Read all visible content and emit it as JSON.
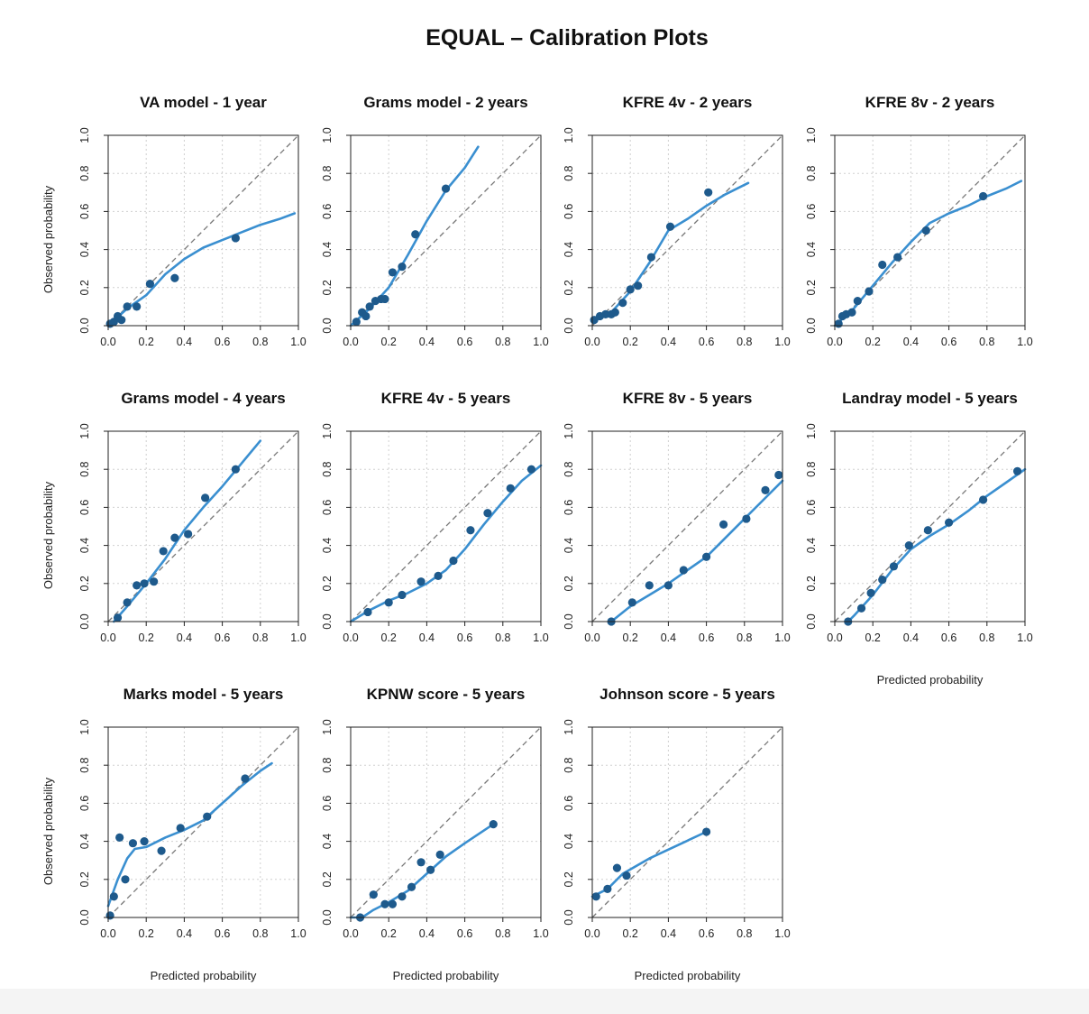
{
  "page": {
    "title": "EQUAL – Calibration Plots"
  },
  "colors": {
    "line": "#3a8fd0",
    "point": "#1e5a8c",
    "reference": "#777777",
    "grid": "#d0d0d0"
  },
  "chart_data": [
    {
      "type": "scatter",
      "title": "VA model - 1 year",
      "xlabel": "",
      "ylabel": "Observed probability",
      "xlim": [
        0,
        1
      ],
      "ylim": [
        0,
        1
      ],
      "xticks": [
        "0.0",
        "0.2",
        "0.4",
        "0.6",
        "0.8",
        "1.0"
      ],
      "yticks": [
        "0.0",
        "0.2",
        "0.4",
        "0.6",
        "0.8",
        "1.0"
      ],
      "grid": true,
      "reference_line": "y = x",
      "points": [
        [
          0.01,
          0.01
        ],
        [
          0.03,
          0.02
        ],
        [
          0.05,
          0.05
        ],
        [
          0.07,
          0.03
        ],
        [
          0.1,
          0.1
        ],
        [
          0.15,
          0.1
        ],
        [
          0.22,
          0.22
        ],
        [
          0.35,
          0.25
        ],
        [
          0.67,
          0.46
        ]
      ],
      "curve": [
        [
          0.0,
          0.0
        ],
        [
          0.1,
          0.09
        ],
        [
          0.2,
          0.16
        ],
        [
          0.3,
          0.27
        ],
        [
          0.4,
          0.35
        ],
        [
          0.5,
          0.41
        ],
        [
          0.6,
          0.45
        ],
        [
          0.7,
          0.49
        ],
        [
          0.8,
          0.53
        ],
        [
          0.9,
          0.56
        ],
        [
          0.98,
          0.59
        ]
      ]
    },
    {
      "type": "scatter",
      "title": "Grams model - 2 years",
      "xlabel": "",
      "ylabel": "",
      "xlim": [
        0,
        1
      ],
      "ylim": [
        0,
        1
      ],
      "xticks": [
        "0.0",
        "0.2",
        "0.4",
        "0.6",
        "0.8",
        "1.0"
      ],
      "yticks": [
        "0.0",
        "0.2",
        "0.4",
        "0.6",
        "0.8",
        "1.0"
      ],
      "grid": true,
      "reference_line": "y = x",
      "points": [
        [
          0.03,
          0.02
        ],
        [
          0.06,
          0.07
        ],
        [
          0.08,
          0.05
        ],
        [
          0.1,
          0.1
        ],
        [
          0.13,
          0.13
        ],
        [
          0.16,
          0.14
        ],
        [
          0.18,
          0.14
        ],
        [
          0.22,
          0.28
        ],
        [
          0.27,
          0.31
        ],
        [
          0.34,
          0.48
        ],
        [
          0.5,
          0.72
        ]
      ],
      "curve": [
        [
          0.0,
          0.0
        ],
        [
          0.1,
          0.09
        ],
        [
          0.2,
          0.2
        ],
        [
          0.3,
          0.37
        ],
        [
          0.4,
          0.55
        ],
        [
          0.5,
          0.71
        ],
        [
          0.6,
          0.83
        ],
        [
          0.67,
          0.94
        ]
      ]
    },
    {
      "type": "scatter",
      "title": "KFRE 4v - 2 years",
      "xlabel": "",
      "ylabel": "",
      "xlim": [
        0,
        1
      ],
      "ylim": [
        0,
        1
      ],
      "xticks": [
        "0.0",
        "0.2",
        "0.4",
        "0.6",
        "0.8",
        "1.0"
      ],
      "yticks": [
        "0.0",
        "0.2",
        "0.4",
        "0.6",
        "0.8",
        "1.0"
      ],
      "grid": true,
      "reference_line": "y = x",
      "points": [
        [
          0.01,
          0.03
        ],
        [
          0.04,
          0.05
        ],
        [
          0.07,
          0.06
        ],
        [
          0.1,
          0.06
        ],
        [
          0.12,
          0.07
        ],
        [
          0.16,
          0.12
        ],
        [
          0.2,
          0.19
        ],
        [
          0.24,
          0.21
        ],
        [
          0.31,
          0.36
        ],
        [
          0.41,
          0.52
        ],
        [
          0.61,
          0.7
        ]
      ],
      "curve": [
        [
          0.0,
          0.03
        ],
        [
          0.1,
          0.07
        ],
        [
          0.2,
          0.18
        ],
        [
          0.3,
          0.33
        ],
        [
          0.4,
          0.5
        ],
        [
          0.5,
          0.56
        ],
        [
          0.6,
          0.63
        ],
        [
          0.7,
          0.69
        ],
        [
          0.82,
          0.75
        ]
      ]
    },
    {
      "type": "scatter",
      "title": "KFRE 8v - 2 years",
      "xlabel": "",
      "ylabel": "",
      "xlim": [
        0,
        1
      ],
      "ylim": [
        0,
        1
      ],
      "xticks": [
        "0.0",
        "0.2",
        "0.4",
        "0.6",
        "0.8",
        "1.0"
      ],
      "yticks": [
        "0.0",
        "0.2",
        "0.4",
        "0.6",
        "0.8",
        "1.0"
      ],
      "grid": true,
      "reference_line": "y = x",
      "points": [
        [
          0.02,
          0.01
        ],
        [
          0.04,
          0.05
        ],
        [
          0.06,
          0.06
        ],
        [
          0.09,
          0.07
        ],
        [
          0.12,
          0.13
        ],
        [
          0.18,
          0.18
        ],
        [
          0.25,
          0.32
        ],
        [
          0.33,
          0.36
        ],
        [
          0.48,
          0.5
        ],
        [
          0.78,
          0.68
        ]
      ],
      "curve": [
        [
          0.0,
          0.0
        ],
        [
          0.1,
          0.09
        ],
        [
          0.2,
          0.21
        ],
        [
          0.3,
          0.33
        ],
        [
          0.4,
          0.44
        ],
        [
          0.5,
          0.54
        ],
        [
          0.6,
          0.59
        ],
        [
          0.7,
          0.63
        ],
        [
          0.8,
          0.68
        ],
        [
          0.9,
          0.72
        ],
        [
          0.98,
          0.76
        ]
      ]
    },
    {
      "type": "scatter",
      "title": "Grams model - 4 years",
      "xlabel": "",
      "ylabel": "Observed probability",
      "xlim": [
        0,
        1
      ],
      "ylim": [
        0,
        1
      ],
      "xticks": [
        "0.0",
        "0.2",
        "0.4",
        "0.6",
        "0.8",
        "1.0"
      ],
      "yticks": [
        "0.0",
        "0.2",
        "0.4",
        "0.6",
        "0.8",
        "1.0"
      ],
      "grid": true,
      "reference_line": "y = x",
      "points": [
        [
          0.05,
          0.02
        ],
        [
          0.1,
          0.1
        ],
        [
          0.15,
          0.19
        ],
        [
          0.19,
          0.2
        ],
        [
          0.24,
          0.21
        ],
        [
          0.29,
          0.37
        ],
        [
          0.35,
          0.44
        ],
        [
          0.42,
          0.46
        ],
        [
          0.51,
          0.65
        ],
        [
          0.67,
          0.8
        ]
      ],
      "curve": [
        [
          0.03,
          0.0
        ],
        [
          0.1,
          0.08
        ],
        [
          0.2,
          0.2
        ],
        [
          0.3,
          0.33
        ],
        [
          0.4,
          0.48
        ],
        [
          0.5,
          0.6
        ],
        [
          0.6,
          0.71
        ],
        [
          0.7,
          0.83
        ],
        [
          0.8,
          0.95
        ]
      ]
    },
    {
      "type": "scatter",
      "title": "KFRE 4v - 5 years",
      "xlabel": "",
      "ylabel": "",
      "xlim": [
        0,
        1
      ],
      "ylim": [
        0,
        1
      ],
      "xticks": [
        "0.0",
        "0.2",
        "0.4",
        "0.6",
        "0.8",
        "1.0"
      ],
      "yticks": [
        "0.0",
        "0.2",
        "0.4",
        "0.6",
        "0.8",
        "1.0"
      ],
      "grid": true,
      "reference_line": "y = x",
      "points": [
        [
          0.09,
          0.05
        ],
        [
          0.2,
          0.1
        ],
        [
          0.27,
          0.14
        ],
        [
          0.37,
          0.21
        ],
        [
          0.46,
          0.24
        ],
        [
          0.54,
          0.32
        ],
        [
          0.63,
          0.48
        ],
        [
          0.72,
          0.57
        ],
        [
          0.84,
          0.7
        ],
        [
          0.95,
          0.8
        ]
      ],
      "curve": [
        [
          0.0,
          0.0
        ],
        [
          0.1,
          0.06
        ],
        [
          0.2,
          0.11
        ],
        [
          0.3,
          0.15
        ],
        [
          0.4,
          0.2
        ],
        [
          0.5,
          0.27
        ],
        [
          0.6,
          0.38
        ],
        [
          0.7,
          0.51
        ],
        [
          0.8,
          0.63
        ],
        [
          0.9,
          0.74
        ],
        [
          1.0,
          0.82
        ]
      ]
    },
    {
      "type": "scatter",
      "title": "KFRE 8v - 5 years",
      "xlabel": "",
      "ylabel": "",
      "xlim": [
        0,
        1
      ],
      "ylim": [
        0,
        1
      ],
      "xticks": [
        "0.0",
        "0.2",
        "0.4",
        "0.6",
        "0.8",
        "1.0"
      ],
      "yticks": [
        "0.0",
        "0.2",
        "0.4",
        "0.6",
        "0.8",
        "1.0"
      ],
      "grid": true,
      "reference_line": "y = x",
      "points": [
        [
          0.1,
          0.0
        ],
        [
          0.21,
          0.1
        ],
        [
          0.3,
          0.19
        ],
        [
          0.4,
          0.19
        ],
        [
          0.48,
          0.27
        ],
        [
          0.6,
          0.34
        ],
        [
          0.69,
          0.51
        ],
        [
          0.81,
          0.54
        ],
        [
          0.91,
          0.69
        ],
        [
          0.98,
          0.77
        ]
      ],
      "curve": [
        [
          0.1,
          0.0
        ],
        [
          0.2,
          0.08
        ],
        [
          0.3,
          0.14
        ],
        [
          0.4,
          0.2
        ],
        [
          0.5,
          0.27
        ],
        [
          0.6,
          0.34
        ],
        [
          0.7,
          0.44
        ],
        [
          0.8,
          0.54
        ],
        [
          0.9,
          0.64
        ],
        [
          1.0,
          0.74
        ]
      ]
    },
    {
      "type": "scatter",
      "title": "Landray model - 5 years",
      "xlabel": "Predicted probability",
      "ylabel": "",
      "xlim": [
        0,
        1
      ],
      "ylim": [
        0,
        1
      ],
      "xticks": [
        "0.0",
        "0.2",
        "0.4",
        "0.6",
        "0.8",
        "1.0"
      ],
      "yticks": [
        "0.0",
        "0.2",
        "0.4",
        "0.6",
        "0.8",
        "1.0"
      ],
      "grid": true,
      "reference_line": "y = x",
      "points": [
        [
          0.07,
          0.0
        ],
        [
          0.14,
          0.07
        ],
        [
          0.19,
          0.15
        ],
        [
          0.25,
          0.22
        ],
        [
          0.31,
          0.29
        ],
        [
          0.39,
          0.4
        ],
        [
          0.49,
          0.48
        ],
        [
          0.6,
          0.52
        ],
        [
          0.78,
          0.64
        ],
        [
          0.96,
          0.79
        ]
      ],
      "curve": [
        [
          0.07,
          0.0
        ],
        [
          0.1,
          0.03
        ],
        [
          0.2,
          0.14
        ],
        [
          0.3,
          0.27
        ],
        [
          0.4,
          0.38
        ],
        [
          0.5,
          0.45
        ],
        [
          0.6,
          0.51
        ],
        [
          0.7,
          0.58
        ],
        [
          0.8,
          0.66
        ],
        [
          0.9,
          0.73
        ],
        [
          1.0,
          0.8
        ]
      ]
    },
    {
      "type": "scatter",
      "title": "Marks model - 5 years",
      "xlabel": "Predicted probability",
      "ylabel": "Observed probability",
      "xlim": [
        0,
        1
      ],
      "ylim": [
        0,
        1
      ],
      "xticks": [
        "0.0",
        "0.2",
        "0.4",
        "0.6",
        "0.8",
        "1.0"
      ],
      "yticks": [
        "0.0",
        "0.2",
        "0.4",
        "0.6",
        "0.8",
        "1.0"
      ],
      "grid": true,
      "reference_line": "y = x",
      "points": [
        [
          0.01,
          0.01
        ],
        [
          0.03,
          0.11
        ],
        [
          0.06,
          0.42
        ],
        [
          0.09,
          0.2
        ],
        [
          0.13,
          0.39
        ],
        [
          0.19,
          0.4
        ],
        [
          0.28,
          0.35
        ],
        [
          0.38,
          0.47
        ],
        [
          0.52,
          0.53
        ],
        [
          0.72,
          0.73
        ]
      ],
      "curve": [
        [
          0.0,
          0.06
        ],
        [
          0.05,
          0.2
        ],
        [
          0.1,
          0.31
        ],
        [
          0.14,
          0.36
        ],
        [
          0.2,
          0.37
        ],
        [
          0.3,
          0.42
        ],
        [
          0.4,
          0.46
        ],
        [
          0.5,
          0.51
        ],
        [
          0.6,
          0.6
        ],
        [
          0.7,
          0.69
        ],
        [
          0.8,
          0.77
        ],
        [
          0.86,
          0.81
        ]
      ]
    },
    {
      "type": "scatter",
      "title": "KPNW score - 5 years",
      "xlabel": "Predicted probability",
      "ylabel": "",
      "xlim": [
        0,
        1
      ],
      "ylim": [
        0,
        1
      ],
      "xticks": [
        "0.0",
        "0.2",
        "0.4",
        "0.6",
        "0.8",
        "1.0"
      ],
      "yticks": [
        "0.0",
        "0.2",
        "0.4",
        "0.6",
        "0.8",
        "1.0"
      ],
      "grid": true,
      "reference_line": "y = x",
      "points": [
        [
          0.05,
          0.0
        ],
        [
          0.12,
          0.12
        ],
        [
          0.18,
          0.07
        ],
        [
          0.22,
          0.07
        ],
        [
          0.27,
          0.11
        ],
        [
          0.32,
          0.16
        ],
        [
          0.37,
          0.29
        ],
        [
          0.42,
          0.25
        ],
        [
          0.47,
          0.33
        ],
        [
          0.75,
          0.49
        ]
      ],
      "curve": [
        [
          0.0,
          0.0
        ],
        [
          0.06,
          0.0
        ],
        [
          0.12,
          0.04
        ],
        [
          0.2,
          0.08
        ],
        [
          0.3,
          0.14
        ],
        [
          0.4,
          0.23
        ],
        [
          0.5,
          0.32
        ],
        [
          0.6,
          0.39
        ],
        [
          0.75,
          0.49
        ]
      ]
    },
    {
      "type": "scatter",
      "title": "Johnson score - 5 years",
      "xlabel": "Predicted probability",
      "ylabel": "",
      "xlim": [
        0,
        1
      ],
      "ylim": [
        0,
        1
      ],
      "xticks": [
        "0.0",
        "0.2",
        "0.4",
        "0.6",
        "0.8",
        "1.0"
      ],
      "yticks": [
        "0.0",
        "0.2",
        "0.4",
        "0.6",
        "0.8",
        "1.0"
      ],
      "grid": true,
      "reference_line": "y = x",
      "points": [
        [
          0.02,
          0.11
        ],
        [
          0.08,
          0.15
        ],
        [
          0.13,
          0.26
        ],
        [
          0.18,
          0.22
        ],
        [
          0.6,
          0.45
        ]
      ],
      "curve": [
        [
          0.0,
          0.11
        ],
        [
          0.08,
          0.15
        ],
        [
          0.16,
          0.23
        ],
        [
          0.3,
          0.31
        ],
        [
          0.45,
          0.38
        ],
        [
          0.6,
          0.45
        ]
      ]
    }
  ]
}
